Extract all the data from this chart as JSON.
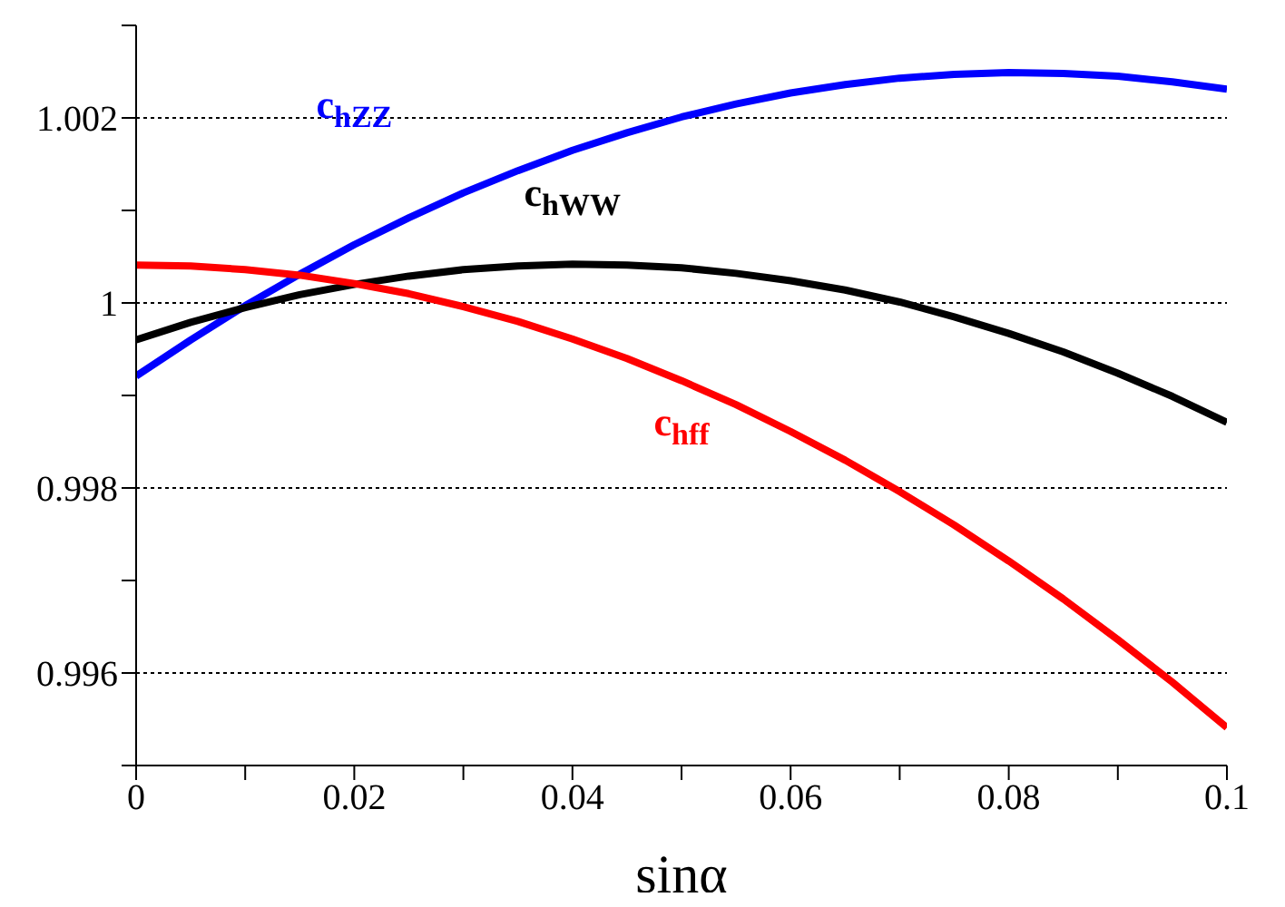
{
  "chart_data": {
    "type": "line",
    "xlabel": "sinα",
    "x": [
      0,
      0.005,
      0.01,
      0.015,
      0.02,
      0.025,
      0.03,
      0.035,
      0.04,
      0.045,
      0.05,
      0.055,
      0.06,
      0.065,
      0.07,
      0.075,
      0.08,
      0.085,
      0.09,
      0.095,
      0.1
    ],
    "series": [
      {
        "name": "c$_{hZZ}$",
        "color": "#0000ff",
        "values": [
          0.99921,
          0.9996,
          0.99997,
          1.00031,
          1.00063,
          1.00092,
          1.00119,
          1.00143,
          1.00165,
          1.00184,
          1.00201,
          1.00215,
          1.00227,
          1.00236,
          1.00243,
          1.00247,
          1.00249,
          1.00248,
          1.00245,
          1.00239,
          1.00231
        ]
      },
      {
        "name": "c$_{hWW}$",
        "color": "#000000",
        "values": [
          0.9996,
          0.99979,
          0.99995,
          1.00009,
          1.0002,
          1.00029,
          1.00036,
          1.0004,
          1.00042,
          1.00041,
          1.00038,
          1.00032,
          1.00024,
          1.00014,
          1.00001,
          0.99985,
          0.99967,
          0.99947,
          0.99924,
          0.99899,
          0.99871
        ]
      },
      {
        "name": "c$_{hff}$",
        "color": "#ff0000",
        "values": [
          1.00041,
          1.0004,
          1.00036,
          1.0003,
          1.00021,
          1.0001,
          0.99996,
          0.9998,
          0.99961,
          0.9994,
          0.99916,
          0.9989,
          0.99861,
          0.9983,
          0.99796,
          0.9976,
          0.99721,
          0.9968,
          0.99636,
          0.9959,
          0.99541
        ]
      }
    ],
    "xlim": [
      0,
      0.1
    ],
    "xticks": [
      0,
      {
        "value": 0.01,
        "label": null
      },
      0.02,
      {
        "value": 0.03,
        "label": null
      },
      0.04,
      {
        "value": 0.05,
        "label": null
      },
      0.06,
      {
        "value": 0.07,
        "label": null
      },
      0.08,
      {
        "value": 0.09,
        "label": null
      },
      0.1
    ],
    "ylim": [
      0.995,
      1.003
    ],
    "yticks": [
      {
        "value": 0.995,
        "label": null
      },
      0.996,
      {
        "value": 0.997,
        "label": null
      },
      0.998,
      {
        "value": 0.999,
        "label": null
      },
      1,
      {
        "value": 1.001,
        "label": null
      },
      1.002,
      {
        "value": 1.003,
        "label": null
      }
    ],
    "grid": "y",
    "marker": "none",
    "line_style": "solid"
  }
}
